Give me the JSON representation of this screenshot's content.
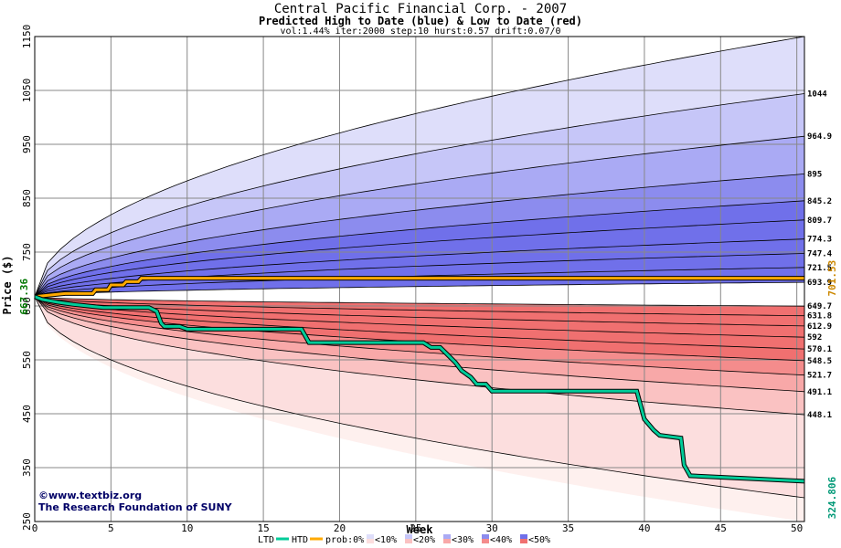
{
  "header": {
    "title": "Central Pacific Financial Corp. - 2007",
    "subtitle": "Predicted High to Date (blue) &  Low to Date (red)",
    "params": "vol:1.44% iter:2000 step:10 hurst:0.57 drift:0.07/0"
  },
  "credits": {
    "line1": "©www.textbiz.org",
    "line2": "The Research Foundation of SUNY"
  },
  "legend": {
    "ltd": "LTD",
    "htd": "HTD",
    "prob": "prob:0%",
    "p10": "<10%",
    "p20": "<20%",
    "p30": "<30%",
    "p40": "<40%",
    "p50": "<50%"
  },
  "colors": {
    "htd_line": "#ffaa00",
    "ltd_line": "#00cc99",
    "grid": "#888888",
    "blue_bands": [
      "#f4f4fe",
      "#dedefa",
      "#c6c6f8",
      "#aaaaf4",
      "#8c8cee",
      "#7070ea"
    ],
    "red_bands": [
      "#fef0ee",
      "#fcdede",
      "#fac2c2",
      "#f8a8a8",
      "#f48c8c",
      "#f07070"
    ],
    "start_label": "#007700",
    "htd_end_label": "#cc8800",
    "ltd_end_label": "#009977"
  },
  "chart_data": {
    "type": "line",
    "title": "Central Pacific Financial Corp. - 2007",
    "subtitle": "Predicted High to Date (blue) &  Low to Date (red)",
    "xlabel": "Week",
    "ylabel": "Price ($)",
    "xlim": [
      0,
      50.5
    ],
    "ylim": [
      250,
      1150
    ],
    "xticks": [
      0,
      5,
      10,
      15,
      20,
      25,
      30,
      35,
      40,
      45,
      50
    ],
    "yticks": [
      250,
      350,
      450,
      550,
      650,
      750,
      850,
      950,
      1050,
      1150
    ],
    "grid": true,
    "start_price": 667.36,
    "start_label": "667.36",
    "upper_quantile_curves": [
      {
        "end": 1150,
        "label": ""
      },
      {
        "end": 1044,
        "label": "1044"
      },
      {
        "end": 964.9,
        "label": "964.9"
      },
      {
        "end": 895,
        "label": "895"
      },
      {
        "end": 845.2,
        "label": "845.2"
      },
      {
        "end": 809.7,
        "label": "809.7"
      },
      {
        "end": 774.3,
        "label": "774.3"
      },
      {
        "end": 747.4,
        "label": "747.4"
      },
      {
        "end": 721.5,
        "label": "721.5"
      },
      {
        "end": 693.9,
        "label": "693.9"
      }
    ],
    "lower_quantile_curves": [
      {
        "end": 649.7,
        "label": "649.7"
      },
      {
        "end": 631.8,
        "label": "631.8"
      },
      {
        "end": 612.9,
        "label": "612.9"
      },
      {
        "end": 592,
        "label": "592"
      },
      {
        "end": 570.1,
        "label": "570.1"
      },
      {
        "end": 548.5,
        "label": "548.5"
      },
      {
        "end": 521.7,
        "label": "521.7"
      },
      {
        "end": 491.1,
        "label": "491.1"
      },
      {
        "end": 448.1,
        "label": "448.1"
      },
      {
        "end": 294,
        "label": ""
      }
    ],
    "series": [
      {
        "name": "HTD",
        "end_label": "701.53",
        "x": [
          0,
          2,
          3.8,
          4.0,
          4.8,
          5.0,
          5.8,
          6.0,
          6.8,
          7.0,
          50.5
        ],
        "y": [
          667.36,
          673,
          673,
          680,
          680,
          689,
          689,
          695,
          695,
          701.53,
          701.53
        ]
      },
      {
        "name": "LTD",
        "end_label": "324.806",
        "x": [
          0,
          0.5,
          1.5,
          2.5,
          3.5,
          4.5,
          7.5,
          8.0,
          8.3,
          8.5,
          9.5,
          10.0,
          17.5,
          18.0,
          25.5,
          26.0,
          26.6,
          27.0,
          27.6,
          28.0,
          28.6,
          29.0,
          29.6,
          30.0,
          39.5,
          40.0,
          40.6,
          41.0,
          42.4,
          42.6,
          43.0,
          50.5
        ],
        "y": [
          667.36,
          662,
          657,
          653,
          650,
          647,
          647,
          640,
          618,
          612,
          612,
          607,
          607,
          582,
          582,
          573,
          573,
          562,
          545,
          530,
          518,
          505,
          505,
          492,
          492,
          440,
          420,
          410,
          405,
          355,
          335,
          324.806
        ]
      }
    ]
  }
}
